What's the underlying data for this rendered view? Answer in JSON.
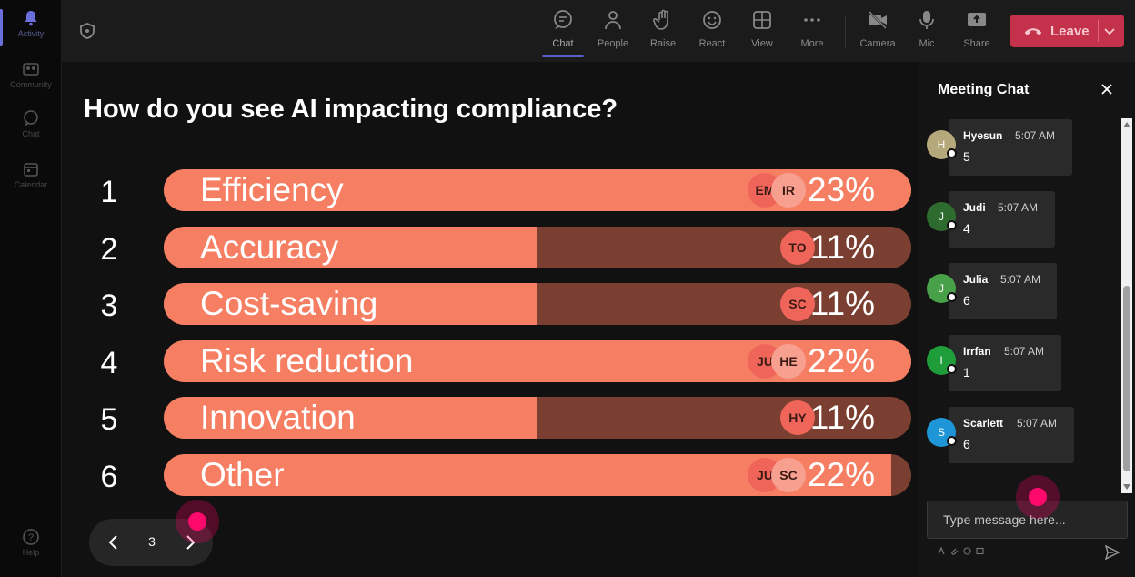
{
  "rail": {
    "items": [
      {
        "label": "Activity",
        "icon": "bell-icon"
      },
      {
        "label": "Community",
        "icon": "community-icon"
      },
      {
        "label": "Chat",
        "icon": "chat-icon"
      },
      {
        "label": "Calendar",
        "icon": "calendar-icon"
      }
    ],
    "help": {
      "label": "Help",
      "icon": "help-icon"
    }
  },
  "toolbar": {
    "chat": "Chat",
    "people": "People",
    "raise": "Raise",
    "react": "React",
    "view": "View",
    "more": "More",
    "camera": "Camera",
    "mic": "Mic",
    "share": "Share",
    "leave": "Leave"
  },
  "poll": {
    "question": "How do you see AI impacting compliance?",
    "options": [
      {
        "num": "1",
        "label": "Efficiency",
        "pct": "23%",
        "fill": 1.0,
        "avatars": [
          "EM",
          "IR"
        ]
      },
      {
        "num": "2",
        "label": "Accuracy",
        "pct": "11%",
        "fill": 0.5,
        "avatars": [
          "TO"
        ]
      },
      {
        "num": "3",
        "label": "Cost-saving",
        "pct": "11%",
        "fill": 0.5,
        "avatars": [
          "SC"
        ]
      },
      {
        "num": "4",
        "label": "Risk reduction",
        "pct": "22%",
        "fill": 1.0,
        "avatars": [
          "JU",
          "HE"
        ]
      },
      {
        "num": "5",
        "label": "Innovation",
        "pct": "11%",
        "fill": 0.5,
        "avatars": [
          "HY"
        ]
      },
      {
        "num": "6",
        "label": "Other",
        "pct": "22%",
        "fill": 0.973,
        "avatars": [
          "JU",
          "SC"
        ]
      }
    ],
    "page": "3"
  },
  "chat": {
    "title": "Meeting Chat",
    "messages": [
      {
        "initial": "H",
        "name": "Hyesun",
        "time": "5:07 AM",
        "text": "5",
        "color": "#b5a87a"
      },
      {
        "initial": "J",
        "name": "Judi",
        "time": "5:07 AM",
        "text": "4",
        "color": "#2e6b2e"
      },
      {
        "initial": "J",
        "name": "Julia",
        "time": "5:07 AM",
        "text": "6",
        "color": "#48a048"
      },
      {
        "initial": "I",
        "name": "Irrfan",
        "time": "5:07 AM",
        "text": "1",
        "color": "#1f9d3b"
      },
      {
        "initial": "S",
        "name": "Scarlett",
        "time": "5:07 AM",
        "text": "6",
        "color": "#1e95d6"
      }
    ],
    "input_placeholder": "Type message here..."
  },
  "colors": {
    "bar_fill": "#f67f63",
    "bar_track": "#7a3f30",
    "leave": "#c4314b",
    "accent": "#5b5fc7"
  }
}
